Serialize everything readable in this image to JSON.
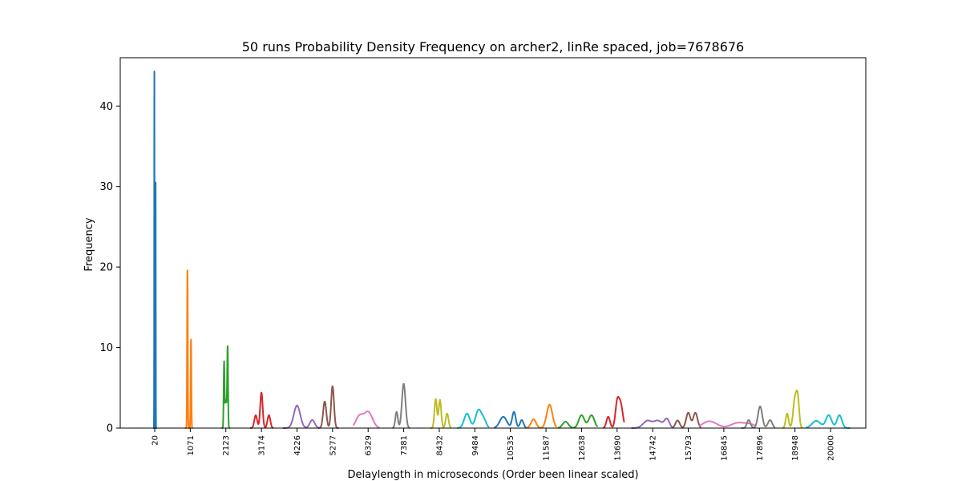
{
  "chart_data": {
    "type": "line",
    "title": "50 runs Probability Density Frequency on archer2, linRe spaced, job=7678676",
    "xlabel": "Delaylength in microseconds (Order been linear scaled)",
    "ylabel": "Frequency",
    "ylim": [
      0,
      46
    ],
    "yticks": [
      0,
      10,
      20,
      30,
      40
    ],
    "grid": false,
    "legend": "none",
    "categories": [
      "20",
      "1071",
      "2123",
      "3174",
      "4226",
      "5277",
      "6329",
      "7381",
      "8432",
      "9484",
      "10535",
      "11587",
      "12638",
      "13690",
      "14742",
      "15793",
      "16845",
      "17896",
      "18948",
      "20000"
    ],
    "series": [
      {
        "color": "#1f77b4",
        "peaks": [
          [
            -0.01,
            44.3,
            0.004
          ],
          [
            0.025,
            30.5,
            0.004
          ]
        ],
        "span": [
          -0.04,
          0.06
        ]
      },
      {
        "color": "#ff7f0e",
        "peaks": [
          [
            -0.08,
            19.6,
            0.01
          ],
          [
            0.02,
            11.0,
            0.01
          ]
        ],
        "span": [
          -0.15,
          0.07
        ]
      },
      {
        "color": "#2ca02c",
        "peaks": [
          [
            -0.05,
            7.4,
            0.012
          ],
          [
            0.05,
            9.3,
            0.012
          ],
          [
            0.0,
            3.5,
            0.03
          ]
        ],
        "span": [
          -0.12,
          0.12
        ]
      },
      {
        "color": "#d62728",
        "peaks": [
          [
            -0.16,
            1.6,
            0.04
          ],
          [
            0.0,
            4.4,
            0.035
          ],
          [
            0.21,
            1.6,
            0.04
          ]
        ],
        "span": [
          -0.32,
          0.34
        ]
      },
      {
        "color": "#9467bd",
        "peaks": [
          [
            0.0,
            2.8,
            0.09
          ],
          [
            0.43,
            1.0,
            0.07
          ]
        ],
        "span": [
          -0.4,
          0.62
        ]
      },
      {
        "color": "#8c564b",
        "peaks": [
          [
            -0.22,
            3.3,
            0.045
          ],
          [
            0.0,
            5.2,
            0.04
          ]
        ],
        "span": [
          -0.4,
          0.17
        ]
      },
      {
        "color": "#e377c2",
        "peaks": [
          [
            -0.25,
            1.4,
            0.1
          ],
          [
            0.0,
            2.0,
            0.12
          ]
        ],
        "span": [
          -0.42,
          0.32
        ]
      },
      {
        "color": "#7f7f7f",
        "peaks": [
          [
            -0.2,
            2.0,
            0.035
          ],
          [
            0.0,
            5.5,
            0.05
          ]
        ],
        "span": [
          -0.32,
          0.17
        ]
      },
      {
        "color": "#bcbd22",
        "peaks": [
          [
            -0.1,
            3.6,
            0.035
          ],
          [
            0.02,
            3.5,
            0.035
          ],
          [
            0.22,
            1.8,
            0.04
          ]
        ],
        "span": [
          -0.25,
          0.34
        ]
      },
      {
        "color": "#17becf",
        "peaks": [
          [
            -0.22,
            1.8,
            0.08
          ],
          [
            0.1,
            2.2,
            0.08
          ],
          [
            0.25,
            1.0,
            0.07
          ]
        ],
        "span": [
          -0.5,
          0.4
        ]
      },
      {
        "color": "#1f77b4",
        "peaks": [
          [
            -0.2,
            1.4,
            0.1
          ],
          [
            0.1,
            2.0,
            0.05
          ],
          [
            0.32,
            1.0,
            0.05
          ]
        ],
        "span": [
          -0.46,
          0.44
        ]
      },
      {
        "color": "#ff7f0e",
        "peaks": [
          [
            -0.35,
            1.1,
            0.07
          ],
          [
            0.1,
            2.9,
            0.08
          ]
        ],
        "span": [
          -0.55,
          0.3
        ]
      },
      {
        "color": "#2ca02c",
        "peaks": [
          [
            -0.45,
            0.8,
            0.08
          ],
          [
            0.0,
            1.6,
            0.08
          ],
          [
            0.28,
            1.6,
            0.08
          ]
        ],
        "span": [
          -0.67,
          0.45
        ]
      },
      {
        "color": "#d62728",
        "peaks": [
          [
            -0.25,
            1.4,
            0.05
          ],
          [
            0.0,
            2.9,
            0.05
          ],
          [
            0.1,
            2.9,
            0.06
          ]
        ],
        "span": [
          -0.4,
          0.2
        ]
      },
      {
        "color": "#9467bd",
        "peaks": [
          [
            -0.15,
            0.9,
            0.12
          ],
          [
            0.15,
            0.9,
            0.12
          ],
          [
            0.4,
            1.1,
            0.07
          ]
        ],
        "span": [
          -0.6,
          0.58
        ]
      },
      {
        "color": "#8c564b",
        "peaks": [
          [
            -0.3,
            0.95,
            0.06
          ],
          [
            0.0,
            1.9,
            0.06
          ],
          [
            0.2,
            1.9,
            0.06
          ]
        ],
        "span": [
          -0.45,
          0.36
        ]
      },
      {
        "color": "#e377c2",
        "peaks": [
          [
            -0.4,
            0.85,
            0.2
          ],
          [
            0.4,
            0.65,
            0.2
          ],
          [
            0.75,
            0.4,
            0.15
          ]
        ],
        "span": [
          -0.7,
          0.9
        ]
      },
      {
        "color": "#7f7f7f",
        "peaks": [
          [
            -0.3,
            1.0,
            0.05
          ],
          [
            0.02,
            2.7,
            0.06
          ],
          [
            0.3,
            1.0,
            0.06
          ]
        ],
        "span": [
          -0.5,
          0.44
        ]
      },
      {
        "color": "#bcbd22",
        "peaks": [
          [
            -0.22,
            1.8,
            0.04
          ],
          [
            0.0,
            3.6,
            0.05
          ],
          [
            0.08,
            3.3,
            0.04
          ]
        ],
        "span": [
          -0.35,
          0.22
        ]
      },
      {
        "color": "#17becf",
        "peaks": [
          [
            -0.4,
            0.9,
            0.12
          ],
          [
            -0.05,
            1.6,
            0.08
          ],
          [
            0.25,
            1.6,
            0.07
          ]
        ],
        "span": [
          -0.7,
          0.55
        ]
      }
    ]
  }
}
